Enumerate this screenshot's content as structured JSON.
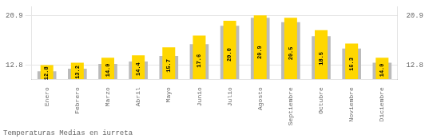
{
  "chart_data": {
    "type": "bar",
    "title": "Temperaturas Medias en iurreta",
    "categories": [
      "Enero",
      "Febrero",
      "Marzo",
      "Abril",
      "Mayo",
      "Junio",
      "Julio",
      "Agosto",
      "Septiembre",
      "Octubre",
      "Noviembre",
      "Diciembre"
    ],
    "series": [
      {
        "color": "#BBBBBB",
        "values": [
          11.8,
          12.2,
          13.0,
          13.4,
          14.3,
          16.2,
          19.2,
          20.5,
          19.8,
          17.5,
          15.5,
          13.2
        ]
      },
      {
        "color": "#FFD700",
        "values": [
          12.8,
          13.2,
          14.0,
          14.4,
          15.7,
          17.6,
          20.0,
          20.9,
          20.5,
          18.5,
          16.3,
          14.0
        ],
        "value_labels": [
          "12.8",
          "13.2",
          "14.0",
          "14.4",
          "15.7",
          "17.6",
          "20.0",
          "20.9",
          "20.5",
          "18.5",
          "16.3",
          "14.0"
        ],
        "data_labels": true
      }
    ],
    "ylim": [
      10.5,
      22.3
    ],
    "yticks": [
      12.8,
      20.9
    ],
    "y2lim": [
      10.5,
      22.3
    ],
    "y2ticks": [
      12.8,
      20.9
    ],
    "grid": true
  }
}
